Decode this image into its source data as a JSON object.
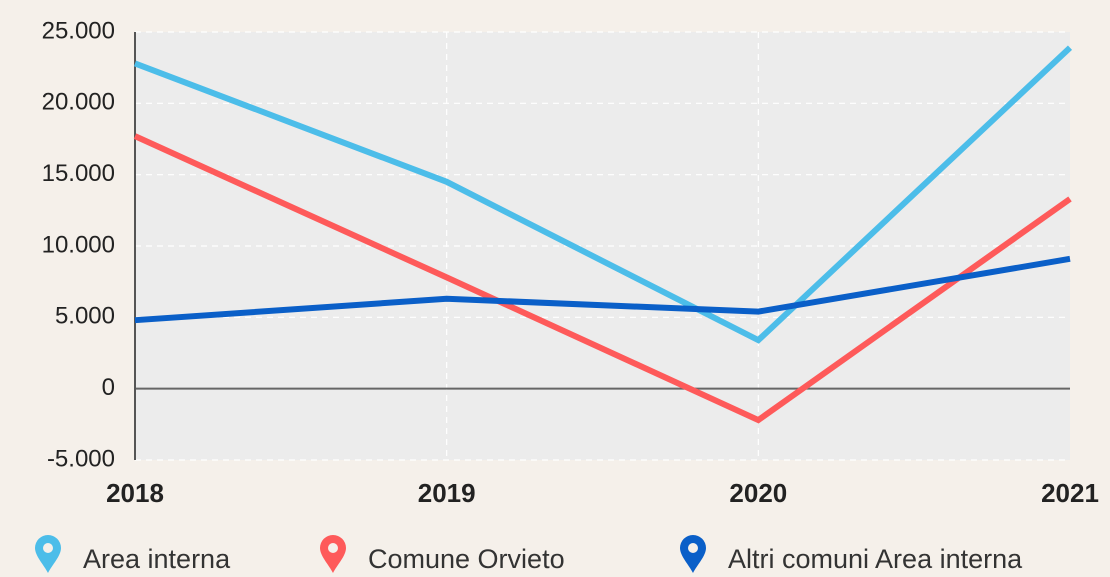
{
  "chart_data": {
    "type": "line",
    "categories": [
      "2018",
      "2019",
      "2020",
      "2021"
    ],
    "series": [
      {
        "name": "Area interna",
        "color": "#4cbde9",
        "values": [
          22800,
          14500,
          3400,
          23900
        ]
      },
      {
        "name": "Comune Orvieto",
        "color": "#fe5a5a",
        "values": [
          17700,
          7800,
          -2200,
          13300
        ]
      },
      {
        "name": "Altri comuni Area interna",
        "color": "#0a5fc8",
        "values": [
          4800,
          6300,
          5400,
          9100
        ]
      }
    ],
    "ylim": [
      -5000,
      25000
    ],
    "yticks": [
      {
        "value": -5000,
        "label": "-5.000"
      },
      0,
      {
        "value": 5000,
        "label": "5.000"
      },
      {
        "value": 10000,
        "label": "10.000"
      },
      {
        "value": 15000,
        "label": "15.000"
      },
      {
        "value": 20000,
        "label": "20.000"
      },
      {
        "value": 25000,
        "label": "25.000"
      }
    ],
    "grid": true,
    "legend": "bottom"
  }
}
